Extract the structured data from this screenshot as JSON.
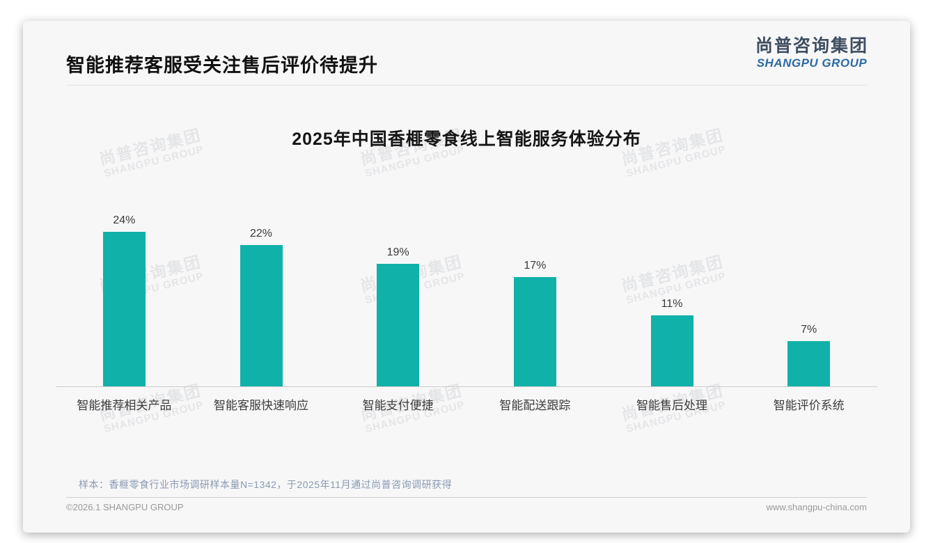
{
  "page": {
    "title": "智能推荐客服受关注售后评价待提升",
    "logo": {
      "cn": "尚普咨询集团",
      "en": "SHANGPU GROUP"
    },
    "watermark": {
      "cn": "尚普咨询集团",
      "en": "SHANGPU GROUP"
    },
    "note": "样本：香榧零食行业市场调研样本量N=1342，于2025年11月通过尚普咨询调研获得",
    "footer": {
      "left": "©2026.1 SHANGPU GROUP",
      "right": "www.shangpu-china.com"
    }
  },
  "chart_data": {
    "type": "bar",
    "title": "2025年中国香榧零食线上智能服务体验分布",
    "categories": [
      "智能推荐相关产品",
      "智能客服快速响应",
      "智能支付便捷",
      "智能配送跟踪",
      "智能售后处理",
      "智能评价系统"
    ],
    "values": [
      24,
      22,
      19,
      17,
      11,
      7
    ],
    "value_labels": [
      "24%",
      "22%",
      "19%",
      "17%",
      "11%",
      "7%"
    ],
    "unit": "%",
    "xlabel": "",
    "ylabel": "",
    "ylim": [
      0,
      26
    ],
    "grid": false,
    "legend": "none",
    "bar_color": "#10b1a9"
  },
  "colors": {
    "bar": "#10b1a9",
    "logo_blue": "#2b6aa6",
    "logo_dark": "#3f4e60",
    "note_text": "#8a9ab2",
    "card_bg": "#f7f7f8"
  }
}
